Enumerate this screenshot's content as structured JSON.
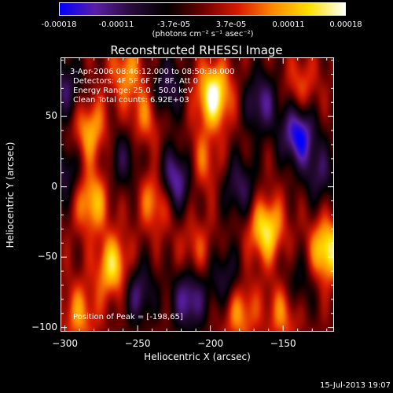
{
  "colorbar": {
    "ticks": [
      "-0.00018",
      "-0.00011",
      "-3.7e-05",
      "3.7e-05",
      "0.00011",
      "0.00018"
    ],
    "units": "(photons cm⁻² s⁻¹ asec⁻²)",
    "colors": [
      "#0000ff",
      "#5a1fa6",
      "#2a0a3a",
      "#000000",
      "#6a0000",
      "#d81a00",
      "#ff8c00",
      "#ffe000",
      "#ffffff"
    ]
  },
  "title": "Reconstructed RHESSI Image",
  "overlay": {
    "time": "3-Apr-2006 08:46:12.000 to 08:50:38.000",
    "detectors": "Detectors: 4F 5F 6F 7F 8F, Att 0",
    "energy": "Energy Range: 25.0 - 50.0 keV",
    "clean": "Clean    Total counts: 6.92E+03",
    "peak": "Position of Peak = [-198,65]"
  },
  "footer": {
    "timestamp": "15-Jul-2013 19:07"
  },
  "chart_data": {
    "type": "heatmap",
    "title": "Reconstructed RHESSI Image",
    "xlabel": "Heliocentric X (arcsec)",
    "ylabel": "Heliocentric Y (arcsec)",
    "xlim": [
      -303,
      -115
    ],
    "ylim": [
      -103,
      92
    ],
    "x_ticks": [
      -300,
      -250,
      -200,
      -150
    ],
    "y_ticks": [
      -100,
      -50,
      0,
      50
    ],
    "colorbar_range": [
      -0.00018,
      0.00018
    ],
    "peak": [
      -198,
      65
    ],
    "sources": [
      {
        "x": -198,
        "y": 65,
        "value": 0.00018
      },
      {
        "x": -162,
        "y": -30,
        "value": 0.00015
      },
      {
        "x": -120,
        "y": -45,
        "value": 0.00016
      },
      {
        "x": -267,
        "y": -57,
        "value": 0.00014
      },
      {
        "x": -282,
        "y": -10,
        "value": 0.00012
      },
      {
        "x": -283,
        "y": 40,
        "value": 0.00011
      },
      {
        "x": -290,
        "y": -90,
        "value": 9e-05
      },
      {
        "x": -237,
        "y": -8,
        "value": 0.00011
      },
      {
        "x": -245,
        "y": 50,
        "value": 8e-05
      },
      {
        "x": -180,
        "y": -88,
        "value": 0.0001
      },
      {
        "x": -150,
        "y": -88,
        "value": 9e-05
      },
      {
        "x": -258,
        "y": 82,
        "value": 9e-05
      },
      {
        "x": -138,
        "y": 70,
        "value": 7e-05
      },
      {
        "x": -205,
        "y": 18,
        "value": 7e-05
      },
      {
        "x": -210,
        "y": -45,
        "value": 6e-05
      },
      {
        "x": -140,
        "y": 38,
        "value": -0.00018
      },
      {
        "x": -225,
        "y": 5,
        "value": -0.00016
      },
      {
        "x": -215,
        "y": -80,
        "value": -0.00014
      },
      {
        "x": -165,
        "y": 60,
        "value": -0.00012
      },
      {
        "x": -250,
        "y": -75,
        "value": -0.00011
      },
      {
        "x": -180,
        "y": 0,
        "value": -0.0001
      },
      {
        "x": -230,
        "y": 70,
        "value": -0.0001
      },
      {
        "x": -125,
        "y": 10,
        "value": -9e-05
      },
      {
        "x": -300,
        "y": 70,
        "value": -0.0001
      },
      {
        "x": -300,
        "y": 10,
        "value": -9e-05
      },
      {
        "x": -260,
        "y": 20,
        "value": -8e-05
      },
      {
        "x": -190,
        "y": -65,
        "value": -9e-05
      },
      {
        "x": -140,
        "y": -70,
        "value": -7e-05
      }
    ]
  }
}
